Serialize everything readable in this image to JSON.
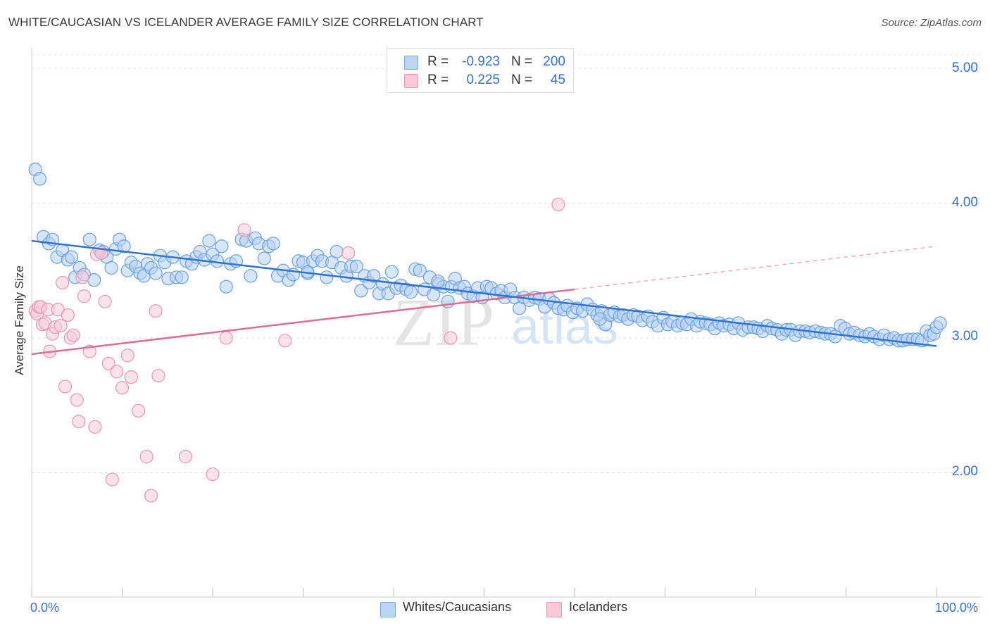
{
  "title": "WHITE/CAUCASIAN VS ICELANDER AVERAGE FAMILY SIZE CORRELATION CHART",
  "source": "Source: ZipAtlas.com",
  "watermark": {
    "zip": "ZIP",
    "atlas": "atlas"
  },
  "legend": {
    "rows": [
      {
        "r_label": "R =",
        "r_value": "-0.923",
        "n_label": "N =",
        "n_value": "200",
        "color": "#a8c8f0"
      },
      {
        "r_label": "R =",
        "r_value": "0.225",
        "n_label": "N =",
        "n_value": "45",
        "color": "#f5b8cb"
      }
    ]
  },
  "bottom_legend": [
    "Whites/Caucasians",
    "Icelanders"
  ],
  "chart_data": {
    "type": "scatter",
    "title": "WHITE/CAUCASIAN VS ICELANDER AVERAGE FAMILY SIZE CORRELATION CHART",
    "xlabel": "",
    "ylabel": "Average Family Size",
    "xlim": [
      0,
      100
    ],
    "ylim": [
      1.05,
      5.1
    ],
    "x_tick_labels": [
      "0.0%",
      "100.0%"
    ],
    "y_ticks": [
      2.0,
      3.0,
      4.0,
      5.0
    ],
    "y_tick_labels": [
      "2.00",
      "3.00",
      "4.00",
      "5.00"
    ],
    "series": [
      {
        "name": "Whites/Caucasians",
        "color": "#4a86d8",
        "fill": "#a8c8f0",
        "trend": {
          "x": [
            0,
            100
          ],
          "y": [
            3.72,
            2.94
          ],
          "style": "solid"
        },
        "points": [
          [
            0.4,
            4.25
          ],
          [
            0.9,
            4.18
          ],
          [
            1.3,
            3.75
          ],
          [
            1.9,
            3.7
          ],
          [
            2.3,
            3.73
          ],
          [
            2.8,
            3.6
          ],
          [
            3.4,
            3.65
          ],
          [
            4.0,
            3.58
          ],
          [
            4.4,
            3.6
          ],
          [
            4.8,
            3.45
          ],
          [
            5.3,
            3.52
          ],
          [
            5.8,
            3.47
          ],
          [
            6.4,
            3.73
          ],
          [
            6.9,
            3.43
          ],
          [
            7.5,
            3.65
          ],
          [
            7.9,
            3.64
          ],
          [
            8.3,
            3.6
          ],
          [
            8.8,
            3.52
          ],
          [
            9.3,
            3.66
          ],
          [
            9.7,
            3.73
          ],
          [
            10.2,
            3.68
          ],
          [
            10.6,
            3.5
          ],
          [
            11.0,
            3.56
          ],
          [
            11.5,
            3.53
          ],
          [
            12.0,
            3.48
          ],
          [
            12.4,
            3.46
          ],
          [
            12.8,
            3.55
          ],
          [
            13.2,
            3.52
          ],
          [
            13.7,
            3.48
          ],
          [
            14.2,
            3.61
          ],
          [
            14.7,
            3.56
          ],
          [
            15.1,
            3.44
          ],
          [
            15.6,
            3.6
          ],
          [
            16.0,
            3.45
          ],
          [
            16.6,
            3.45
          ],
          [
            17.1,
            3.57
          ],
          [
            17.7,
            3.55
          ],
          [
            18.2,
            3.6
          ],
          [
            18.6,
            3.64
          ],
          [
            19.1,
            3.58
          ],
          [
            19.6,
            3.72
          ],
          [
            20.0,
            3.62
          ],
          [
            20.5,
            3.57
          ],
          [
            21.0,
            3.68
          ],
          [
            21.5,
            3.38
          ],
          [
            22.0,
            3.55
          ],
          [
            22.6,
            3.57
          ],
          [
            23.2,
            3.73
          ],
          [
            23.7,
            3.72
          ],
          [
            24.2,
            3.46
          ],
          [
            24.7,
            3.74
          ],
          [
            25.1,
            3.7
          ],
          [
            25.7,
            3.59
          ],
          [
            26.2,
            3.68
          ],
          [
            26.7,
            3.7
          ],
          [
            27.2,
            3.46
          ],
          [
            27.8,
            3.5
          ],
          [
            28.4,
            3.43
          ],
          [
            28.9,
            3.47
          ],
          [
            29.5,
            3.57
          ],
          [
            30.0,
            3.56
          ],
          [
            30.5,
            3.48
          ],
          [
            31.1,
            3.57
          ],
          [
            31.6,
            3.61
          ],
          [
            32.1,
            3.57
          ],
          [
            32.6,
            3.45
          ],
          [
            33.2,
            3.56
          ],
          [
            33.7,
            3.64
          ],
          [
            34.2,
            3.52
          ],
          [
            34.8,
            3.46
          ],
          [
            35.3,
            3.53
          ],
          [
            35.9,
            3.53
          ],
          [
            36.4,
            3.35
          ],
          [
            36.8,
            3.46
          ],
          [
            37.3,
            3.41
          ],
          [
            37.8,
            3.46
          ],
          [
            38.4,
            3.33
          ],
          [
            38.8,
            3.4
          ],
          [
            39.4,
            3.33
          ],
          [
            39.8,
            3.49
          ],
          [
            40.3,
            3.37
          ],
          [
            40.8,
            3.39
          ],
          [
            41.4,
            3.36
          ],
          [
            41.9,
            3.34
          ],
          [
            42.4,
            3.51
          ],
          [
            42.9,
            3.5
          ],
          [
            43.4,
            3.36
          ],
          [
            44.0,
            3.45
          ],
          [
            44.4,
            3.32
          ],
          [
            44.9,
            3.4
          ],
          [
            45.5,
            3.38
          ],
          [
            46.0,
            3.27
          ],
          [
            46.4,
            3.38
          ],
          [
            46.8,
            3.44
          ],
          [
            47.3,
            3.37
          ],
          [
            47.8,
            3.38
          ],
          [
            48.2,
            3.33
          ],
          [
            48.8,
            3.31
          ],
          [
            49.3,
            3.37
          ],
          [
            49.8,
            3.3
          ],
          [
            50.3,
            3.38
          ],
          [
            50.8,
            3.37
          ],
          [
            51.4,
            3.33
          ],
          [
            51.9,
            3.35
          ],
          [
            52.3,
            3.3
          ],
          [
            52.9,
            3.36
          ],
          [
            53.4,
            3.3
          ],
          [
            53.9,
            3.22
          ],
          [
            54.4,
            3.3
          ],
          [
            55.0,
            3.28
          ],
          [
            55.6,
            3.3
          ],
          [
            56.1,
            3.29
          ],
          [
            56.7,
            3.23
          ],
          [
            57.2,
            3.29
          ],
          [
            57.7,
            3.26
          ],
          [
            58.2,
            3.22
          ],
          [
            58.8,
            3.21
          ],
          [
            59.2,
            3.24
          ],
          [
            59.8,
            3.19
          ],
          [
            60.3,
            3.22
          ],
          [
            60.9,
            3.2
          ],
          [
            61.4,
            3.25
          ],
          [
            62.0,
            3.21
          ],
          [
            62.5,
            3.17
          ],
          [
            63.0,
            3.2
          ],
          [
            63.4,
            3.1
          ],
          [
            63.9,
            3.17
          ],
          [
            64.4,
            3.19
          ],
          [
            65.0,
            3.16
          ],
          [
            65.4,
            3.17
          ],
          [
            65.9,
            3.14
          ],
          [
            66.5,
            3.17
          ],
          [
            67.0,
            3.16
          ],
          [
            67.5,
            3.13
          ],
          [
            68.1,
            3.16
          ],
          [
            68.6,
            3.12
          ],
          [
            69.2,
            3.09
          ],
          [
            69.8,
            3.15
          ],
          [
            70.3,
            3.1
          ],
          [
            70.8,
            3.12
          ],
          [
            71.4,
            3.09
          ],
          [
            71.9,
            3.11
          ],
          [
            72.4,
            3.1
          ],
          [
            72.9,
            3.14
          ],
          [
            73.5,
            3.09
          ],
          [
            73.9,
            3.12
          ],
          [
            74.5,
            3.11
          ],
          [
            75.0,
            3.1
          ],
          [
            75.5,
            3.07
          ],
          [
            76.0,
            3.11
          ],
          [
            76.5,
            3.09
          ],
          [
            77.1,
            3.1
          ],
          [
            77.6,
            3.07
          ],
          [
            78.1,
            3.11
          ],
          [
            78.6,
            3.06
          ],
          [
            79.2,
            3.08
          ],
          [
            79.8,
            3.08
          ],
          [
            80.3,
            3.07
          ],
          [
            80.8,
            3.05
          ],
          [
            81.3,
            3.09
          ],
          [
            81.8,
            3.07
          ],
          [
            82.4,
            3.06
          ],
          [
            82.9,
            3.03
          ],
          [
            83.4,
            3.06
          ],
          [
            83.9,
            3.06
          ],
          [
            84.4,
            3.02
          ],
          [
            84.9,
            3.05
          ],
          [
            85.5,
            3.05
          ],
          [
            86.0,
            3.04
          ],
          [
            86.6,
            3.05
          ],
          [
            87.2,
            3.04
          ],
          [
            87.7,
            3.03
          ],
          [
            88.3,
            3.03
          ],
          [
            88.8,
            3.01
          ],
          [
            89.4,
            3.09
          ],
          [
            89.9,
            3.07
          ],
          [
            90.4,
            3.03
          ],
          [
            90.9,
            3.04
          ],
          [
            91.5,
            3.02
          ],
          [
            92.1,
            3.01
          ],
          [
            92.6,
            3.03
          ],
          [
            93.1,
            3.01
          ],
          [
            93.7,
            2.99
          ],
          [
            94.2,
            3.02
          ],
          [
            94.8,
            2.99
          ],
          [
            95.3,
            3.0
          ],
          [
            95.8,
            2.98
          ],
          [
            96.3,
            2.98
          ],
          [
            96.8,
            2.99
          ],
          [
            97.4,
            2.99
          ],
          [
            97.9,
            2.99
          ],
          [
            98.4,
            2.98
          ],
          [
            98.9,
            3.05
          ],
          [
            99.3,
            3.02
          ],
          [
            99.7,
            3.03
          ],
          [
            100.0,
            3.08
          ],
          [
            100.4,
            3.11
          ],
          [
            62.8,
            3.14
          ],
          [
            44.9,
            3.42
          ],
          [
            30.5,
            3.49
          ]
        ]
      },
      {
        "name": "Icelanders",
        "color": "#e06b94",
        "fill": "#f5b8cb",
        "trend": {
          "x": [
            0,
            60
          ],
          "y": [
            2.88,
            3.36
          ],
          "style": "solid"
        },
        "trend_extension": {
          "x": [
            60,
            100
          ],
          "y": [
            3.36,
            3.68
          ],
          "style": "dashed"
        },
        "points": [
          [
            0.4,
            3.2
          ],
          [
            0.6,
            3.18
          ],
          [
            0.8,
            3.23
          ],
          [
            1.0,
            3.23
          ],
          [
            1.2,
            3.1
          ],
          [
            1.5,
            3.11
          ],
          [
            1.8,
            3.21
          ],
          [
            2.0,
            2.9
          ],
          [
            2.3,
            3.03
          ],
          [
            2.6,
            3.08
          ],
          [
            2.9,
            3.21
          ],
          [
            3.2,
            3.09
          ],
          [
            3.4,
            3.41
          ],
          [
            3.7,
            2.64
          ],
          [
            4.0,
            3.17
          ],
          [
            4.3,
            3.0
          ],
          [
            4.6,
            3.02
          ],
          [
            5.0,
            2.54
          ],
          [
            5.2,
            2.38
          ],
          [
            5.6,
            3.45
          ],
          [
            5.8,
            3.31
          ],
          [
            6.4,
            2.9
          ],
          [
            7.0,
            2.34
          ],
          [
            7.2,
            3.62
          ],
          [
            7.7,
            3.63
          ],
          [
            8.1,
            3.27
          ],
          [
            8.5,
            2.81
          ],
          [
            8.9,
            1.95
          ],
          [
            9.4,
            2.75
          ],
          [
            10.0,
            2.63
          ],
          [
            10.6,
            2.87
          ],
          [
            11.0,
            2.71
          ],
          [
            11.8,
            2.46
          ],
          [
            12.7,
            2.12
          ],
          [
            13.2,
            1.83
          ],
          [
            13.7,
            3.2
          ],
          [
            14.0,
            2.72
          ],
          [
            17.0,
            2.12
          ],
          [
            20.0,
            1.99
          ],
          [
            21.5,
            3.0
          ],
          [
            23.5,
            3.8
          ],
          [
            28.0,
            2.98
          ],
          [
            35.0,
            3.63
          ],
          [
            46.3,
            3.0
          ],
          [
            58.2,
            3.99
          ]
        ]
      }
    ]
  }
}
